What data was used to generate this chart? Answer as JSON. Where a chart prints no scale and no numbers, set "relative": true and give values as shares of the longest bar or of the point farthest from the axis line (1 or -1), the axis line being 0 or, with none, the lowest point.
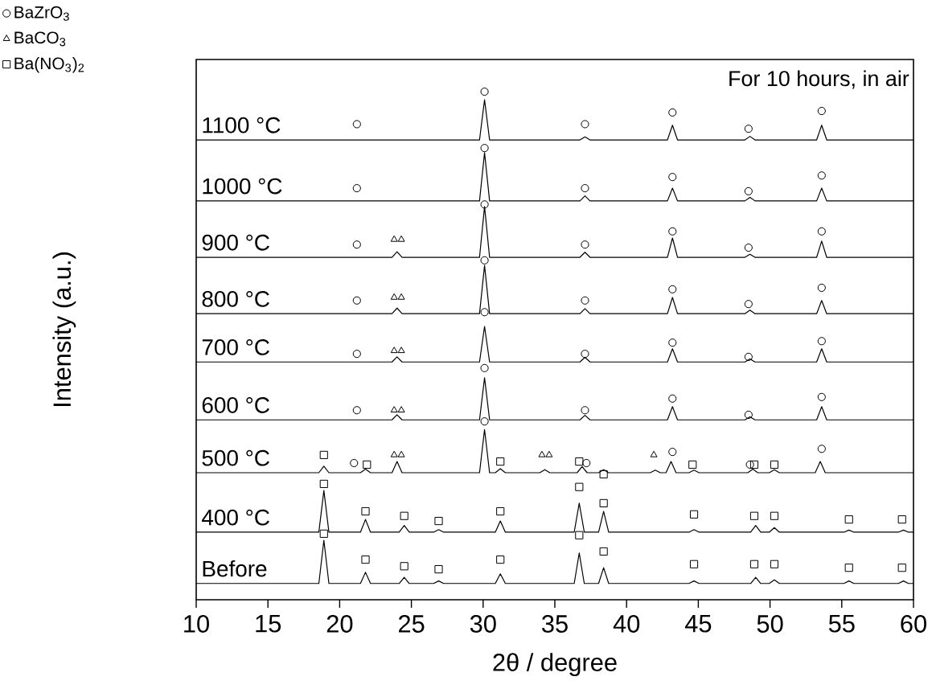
{
  "chart_data": {
    "type": "line",
    "relative": true,
    "xlabel": "2θ / degree",
    "ylabel": "Intensity (a.u.)",
    "xlim": [
      10,
      60
    ],
    "xticks": [
      10,
      15,
      20,
      25,
      30,
      35,
      40,
      45,
      50,
      55,
      60
    ],
    "tick_labels": "x",
    "legend": "top left",
    "annotations": [
      "For 10 hours, in air",
      "1100 °C",
      "1000 °C",
      "900 °C",
      "800 °C",
      "700 °C",
      "600 °C",
      "500 °C",
      "400 °C",
      "Before"
    ],
    "series": [
      {
        "type": "line",
        "color": "#000000",
        "x": [
          10,
          29.75,
          30.1,
          30.45,
          36.75,
          37.1,
          37.45,
          42.85,
          43.2,
          43.55,
          48.25,
          48.6,
          48.95,
          53.25,
          53.6,
          53.95,
          60
        ],
        "values": [
          0.905,
          0.905,
          0.984,
          0.905,
          0.905,
          0.911,
          0.905,
          0.905,
          0.934,
          0.905,
          0.905,
          0.912,
          0.905,
          0.905,
          0.934,
          0.905,
          0.905
        ]
      },
      {
        "type": "line",
        "color": "#000000",
        "x": [
          10,
          29.75,
          30.1,
          30.45,
          36.75,
          37.1,
          37.45,
          42.85,
          43.2,
          43.55,
          48.25,
          48.6,
          48.95,
          53.25,
          53.6,
          53.95,
          60
        ],
        "values": [
          0.785,
          0.785,
          0.88,
          0.785,
          0.785,
          0.795,
          0.785,
          0.785,
          0.81,
          0.785,
          0.785,
          0.792,
          0.785,
          0.785,
          0.81,
          0.785,
          0.785
        ]
      },
      {
        "type": "line",
        "color": "#000000",
        "x": [
          10,
          23.65,
          24.0,
          24.35,
          29.75,
          30.1,
          30.45,
          36.75,
          37.1,
          37.45,
          42.85,
          43.2,
          43.55,
          48.25,
          48.6,
          48.95,
          53.25,
          53.6,
          53.95,
          60
        ],
        "values": [
          0.674,
          0.674,
          0.685,
          0.674,
          0.674,
          0.774,
          0.674,
          0.674,
          0.684,
          0.674,
          0.674,
          0.712,
          0.674,
          0.674,
          0.68,
          0.674,
          0.674,
          0.706,
          0.674,
          0.674
        ]
      },
      {
        "type": "line",
        "color": "#000000",
        "x": [
          10,
          23.65,
          24.0,
          24.35,
          29.75,
          30.1,
          30.45,
          36.75,
          37.1,
          37.45,
          42.85,
          43.2,
          43.55,
          48.25,
          48.6,
          48.95,
          53.25,
          53.6,
          53.95,
          60
        ],
        "values": [
          0.563,
          0.563,
          0.574,
          0.563,
          0.563,
          0.658,
          0.563,
          0.563,
          0.573,
          0.563,
          0.563,
          0.595,
          0.563,
          0.563,
          0.57,
          0.563,
          0.563,
          0.589,
          0.563,
          0.563
        ]
      },
      {
        "type": "line",
        "color": "#000000",
        "x": [
          10,
          23.65,
          24.0,
          24.35,
          29.75,
          30.1,
          30.45,
          36.75,
          37.1,
          37.45,
          42.85,
          43.2,
          43.55,
          48.25,
          48.6,
          48.95,
          53.25,
          53.6,
          53.95,
          60
        ],
        "values": [
          0.468,
          0.468,
          0.478,
          0.468,
          0.468,
          0.538,
          0.468,
          0.468,
          0.477,
          0.468,
          0.468,
          0.494,
          0.468,
          0.468,
          0.474,
          0.468,
          0.468,
          0.494,
          0.468,
          0.468
        ]
      },
      {
        "type": "line",
        "color": "#000000",
        "x": [
          10,
          23.65,
          24.0,
          24.35,
          29.75,
          30.1,
          30.45,
          36.75,
          37.1,
          37.45,
          42.85,
          43.2,
          43.55,
          48.25,
          48.6,
          48.95,
          53.25,
          53.6,
          53.95,
          60
        ],
        "values": [
          0.354,
          0.354,
          0.364,
          0.354,
          0.354,
          0.437,
          0.354,
          0.354,
          0.363,
          0.354,
          0.354,
          0.38,
          0.354,
          0.354,
          0.36,
          0.354,
          0.354,
          0.38,
          0.354,
          0.354
        ]
      },
      {
        "type": "line",
        "color": "#000000",
        "x": [
          10,
          18.55,
          18.9,
          19.25,
          21.45,
          21.8,
          22.15,
          23.65,
          24.0,
          24.35,
          29.75,
          30.1,
          30.45,
          30.85,
          31.2,
          31.55,
          33.95,
          34.3,
          34.65,
          36.55,
          36.9,
          37.25,
          38.05,
          38.4,
          38.75,
          41.65,
          42.0,
          42.35,
          42.75,
          43.1,
          43.45,
          44.35,
          44.7,
          45.05,
          48.45,
          48.8,
          49.15,
          49.95,
          50.3,
          50.65,
          53.15,
          53.5,
          53.85,
          60
        ],
        "values": [
          0.25,
          0.25,
          0.263,
          0.25,
          0.25,
          0.257,
          0.25,
          0.25,
          0.272,
          0.25,
          0.25,
          0.335,
          0.25,
          0.25,
          0.258,
          0.25,
          0.25,
          0.256,
          0.25,
          0.25,
          0.262,
          0.25,
          0.25,
          0.256,
          0.25,
          0.25,
          0.255,
          0.25,
          0.25,
          0.272,
          0.25,
          0.25,
          0.255,
          0.25,
          0.25,
          0.257,
          0.25,
          0.25,
          0.256,
          0.25,
          0.25,
          0.272,
          0.25,
          0.25
        ]
      },
      {
        "type": "line",
        "color": "#000000",
        "x": [
          10,
          18.55,
          18.9,
          19.25,
          21.45,
          21.8,
          22.15,
          24.15,
          24.5,
          24.85,
          26.55,
          26.9,
          27.25,
          30.85,
          31.2,
          31.55,
          36.35,
          36.7,
          37.05,
          38.05,
          38.4,
          38.75,
          44.35,
          44.7,
          45.05,
          48.65,
          49.0,
          49.35,
          49.95,
          50.3,
          50.65,
          55.15,
          55.5,
          55.85,
          58.95,
          59.3,
          59.65,
          60
        ],
        "values": [
          0.133,
          0.133,
          0.215,
          0.133,
          0.133,
          0.158,
          0.133,
          0.133,
          0.146,
          0.133,
          0.133,
          0.138,
          0.133,
          0.133,
          0.155,
          0.133,
          0.133,
          0.19,
          0.133,
          0.133,
          0.174,
          0.133,
          0.133,
          0.138,
          0.133,
          0.133,
          0.146,
          0.133,
          0.133,
          0.142,
          0.133,
          0.133,
          0.137,
          0.133,
          0.133,
          0.137,
          0.133,
          0.133
        ]
      },
      {
        "type": "line",
        "color": "#000000",
        "x": [
          10,
          18.55,
          18.9,
          19.25,
          21.45,
          21.8,
          22.15,
          24.15,
          24.5,
          24.85,
          26.55,
          26.9,
          27.25,
          30.85,
          31.2,
          31.55,
          36.35,
          36.7,
          37.05,
          38.05,
          38.4,
          38.75,
          44.35,
          44.7,
          45.05,
          48.65,
          49.0,
          49.35,
          49.95,
          50.3,
          50.65,
          55.15,
          55.5,
          55.85,
          58.95,
          59.3,
          59.65,
          60
        ],
        "values": [
          0.032,
          0.032,
          0.117,
          0.032,
          0.032,
          0.054,
          0.032,
          0.032,
          0.044,
          0.032,
          0.032,
          0.037,
          0.032,
          0.032,
          0.051,
          0.032,
          0.032,
          0.092,
          0.032,
          0.032,
          0.063,
          0.032,
          0.032,
          0.037,
          0.032,
          0.032,
          0.044,
          0.032,
          0.032,
          0.039,
          0.032,
          0.032,
          0.037,
          0.032,
          0.032,
          0.037,
          0.032,
          0.032
        ]
      },
      {
        "type": "scatter",
        "name": "BaZrO$_{3}$",
        "color": "#000000",
        "marker": "circle",
        "x": [
          21.2,
          30.1,
          37.1,
          43.2,
          48.5,
          53.6,
          21.2,
          30.1,
          37.1,
          43.2,
          48.5,
          53.6,
          21.2,
          30.1,
          37.1,
          43.2,
          48.5,
          53.6,
          21.2,
          30.1,
          37.1,
          43.2,
          48.5,
          53.6,
          21.2,
          30.1,
          37.1,
          43.2,
          48.5,
          53.6,
          21.2,
          30.1,
          37.1,
          43.2,
          48.5,
          53.6,
          21.0,
          30.1,
          37.2,
          43.2,
          48.6,
          53.6
        ],
        "values": [
          0.936,
          1.0,
          0.936,
          0.959,
          0.927,
          0.962,
          0.81,
          0.889,
          0.81,
          0.832,
          0.804,
          0.835,
          0.699,
          0.778,
          0.699,
          0.725,
          0.693,
          0.725,
          0.589,
          0.668,
          0.589,
          0.611,
          0.582,
          0.614,
          0.484,
          0.566,
          0.484,
          0.506,
          0.478,
          0.509,
          0.373,
          0.456,
          0.373,
          0.396,
          0.364,
          0.399,
          0.269,
          0.351,
          0.269,
          0.291,
          0.266,
          0.297
        ]
      },
      {
        "type": "scatter",
        "name": "BaCO$_{3}$",
        "color": "#000000",
        "marker": "triangle",
        "x": [
          23.8,
          24.3,
          23.8,
          24.3,
          23.8,
          24.3,
          23.8,
          24.3,
          23.8,
          24.3,
          34.1,
          34.6,
          41.9
        ],
        "values": [
          0.709,
          0.709,
          0.595,
          0.595,
          0.49,
          0.49,
          0.373,
          0.373,
          0.285,
          0.285,
          0.285,
          0.285,
          0.285
        ]
      },
      {
        "type": "scatter",
        "name": "Ba(NO$_{3}$)$_{2}$",
        "color": "#000000",
        "marker": "square",
        "x": [
          18.9,
          21.9,
          31.2,
          36.7,
          38.4,
          44.6,
          48.9,
          50.3,
          18.9,
          21.8,
          24.5,
          26.9,
          31.2,
          36.7,
          38.4,
          44.7,
          48.9,
          50.3,
          55.5,
          59.2,
          18.9,
          21.8,
          24.5,
          26.9,
          31.2,
          36.7,
          38.4,
          44.7,
          48.9,
          50.3,
          55.5,
          59.2
        ],
        "values": [
          0.285,
          0.266,
          0.272,
          0.272,
          0.247,
          0.266,
          0.266,
          0.266,
          0.228,
          0.174,
          0.165,
          0.155,
          0.174,
          0.222,
          0.19,
          0.168,
          0.165,
          0.165,
          0.158,
          0.158,
          0.13,
          0.079,
          0.066,
          0.06,
          0.079,
          0.127,
          0.095,
          0.07,
          0.07,
          0.07,
          0.063,
          0.063
        ]
      }
    ]
  }
}
